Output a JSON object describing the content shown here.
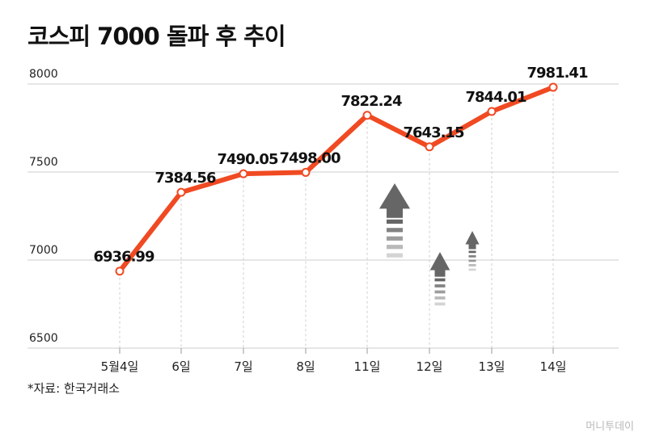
{
  "title": "코스피 7000 돌파 후 추이",
  "source": "*자료: 한국거래소",
  "watermark": "머니투데이",
  "colors": {
    "line": "#f04a23",
    "point_fill": "#ffffff",
    "grid": "#cccccc",
    "arrow": "#666666"
  },
  "chart_data": {
    "type": "line",
    "title": "코스피 7000 돌파 후 추이",
    "xlabel": "",
    "ylabel": "",
    "categories": [
      "5월4일",
      "6일",
      "7일",
      "8일",
      "11일",
      "12일",
      "13일",
      "14일"
    ],
    "values": [
      6936.99,
      7384.56,
      7490.05,
      7498.0,
      7822.24,
      7643.15,
      7844.01,
      7981.41
    ],
    "data_labels": [
      "6936.99",
      "7384.56",
      "7490.05",
      "7498.00",
      "7822.24",
      "7643.15",
      "7844.01",
      "7981.41"
    ],
    "ylim": [
      6500,
      8000
    ],
    "yticks": [
      "6500",
      "7000",
      "7500",
      "8000"
    ],
    "grid": true,
    "legend": "none"
  }
}
